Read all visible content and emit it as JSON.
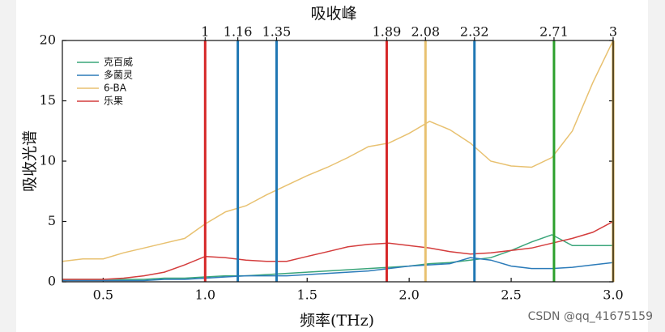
{
  "chart_data": {
    "type": "line",
    "x2label": "吸收峰",
    "xlabel": "频率(THz)",
    "ylabel": "吸收光谱",
    "watermark": "CSDN @qq_41675159",
    "x": [
      0.3,
      0.4,
      0.5,
      0.6,
      0.7,
      0.8,
      0.9,
      1.0,
      1.1,
      1.2,
      1.3,
      1.4,
      1.5,
      1.6,
      1.7,
      1.8,
      1.9,
      2.0,
      2.1,
      2.2,
      2.3,
      2.4,
      2.5,
      2.6,
      2.7,
      2.8,
      2.9,
      3.0
    ],
    "series": [
      {
        "name": "克百威",
        "color": "#3aa57a",
        "values": [
          0.2,
          0.2,
          0.2,
          0.2,
          0.2,
          0.3,
          0.3,
          0.4,
          0.5,
          0.5,
          0.6,
          0.7,
          0.8,
          0.9,
          1.0,
          1.1,
          1.2,
          1.3,
          1.5,
          1.6,
          1.8,
          2.0,
          2.6,
          3.3,
          3.9,
          3.0,
          3.0,
          3.0
        ]
      },
      {
        "name": "多菌灵",
        "color": "#2b7bb9",
        "values": [
          0.1,
          0.1,
          0.1,
          0.1,
          0.1,
          0.2,
          0.2,
          0.3,
          0.4,
          0.5,
          0.5,
          0.5,
          0.6,
          0.7,
          0.8,
          0.9,
          1.1,
          1.3,
          1.4,
          1.5,
          2.0,
          1.8,
          1.3,
          1.1,
          1.1,
          1.2,
          1.4,
          1.6
        ]
      },
      {
        "name": "6-BA",
        "color": "#e8c170",
        "values": [
          1.7,
          1.9,
          1.9,
          2.4,
          2.8,
          3.2,
          3.6,
          4.8,
          5.8,
          6.3,
          7.2,
          8.0,
          8.8,
          9.5,
          10.3,
          11.2,
          11.5,
          12.3,
          13.3,
          12.6,
          11.5,
          10.0,
          9.6,
          9.5,
          10.3,
          12.5,
          16.5,
          20
        ]
      },
      {
        "name": "乐果",
        "color": "#d43d3d",
        "values": [
          0.2,
          0.2,
          0.2,
          0.3,
          0.5,
          0.8,
          1.4,
          2.1,
          2.0,
          1.8,
          1.7,
          1.7,
          2.1,
          2.5,
          2.9,
          3.1,
          3.2,
          3.0,
          2.8,
          2.5,
          2.3,
          2.4,
          2.6,
          2.8,
          3.2,
          3.6,
          4.1,
          5.0
        ]
      }
    ],
    "peaks": [
      {
        "value": 1,
        "color": "#d62728"
      },
      {
        "value": 1.16,
        "color": "#1f77b4"
      },
      {
        "value": 1.35,
        "color": "#1f77b4"
      },
      {
        "value": 1.89,
        "color": "#d62728"
      },
      {
        "value": 2.08,
        "color": "#e8c170"
      },
      {
        "value": 2.32,
        "color": "#1f77b4"
      },
      {
        "value": 2.71,
        "color": "#2ca02c"
      },
      {
        "value": 3,
        "color": "#c8a040"
      }
    ],
    "xlim": [
      0.3,
      3.0
    ],
    "xticks": [
      {
        "value": 0.5,
        "label": "0.5"
      },
      {
        "value": 1.0,
        "label": "1.0"
      },
      {
        "value": 1.5,
        "label": "1.5"
      },
      {
        "value": 2.0,
        "label": "2.0"
      },
      {
        "value": 2.5,
        "label": "2.5"
      },
      {
        "value": 3.0,
        "label": "3.0"
      }
    ],
    "ylim": [
      0,
      20
    ],
    "yticks": [
      0,
      5,
      10,
      15,
      20
    ]
  }
}
